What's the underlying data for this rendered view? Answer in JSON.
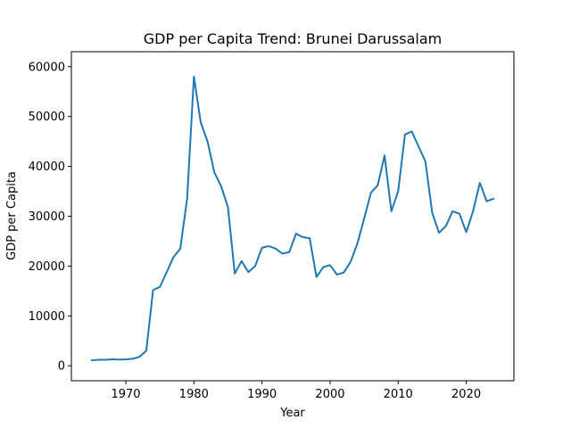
{
  "chart_data": {
    "type": "line",
    "title": "GDP per Capita Trend: Brunei Darussalam",
    "xlabel": "Year",
    "ylabel": "GDP per Capita",
    "xlim": [
      1962,
      2027
    ],
    "ylim": [
      -3000,
      63000
    ],
    "xticks": [
      1970,
      1980,
      1990,
      2000,
      2010,
      2020
    ],
    "yticks": [
      0,
      10000,
      20000,
      30000,
      40000,
      50000,
      60000
    ],
    "grid": false,
    "line_color": "#1f77b4",
    "series": [
      {
        "x": [
          1965,
          1966,
          1967,
          1968,
          1969,
          1970,
          1971,
          1972,
          1973,
          1974,
          1975,
          1976,
          1977,
          1978,
          1979,
          1980,
          1981,
          1982,
          1983,
          1984,
          1985,
          1986,
          1987,
          1988,
          1989,
          1990,
          1991,
          1992,
          1993,
          1994,
          1995,
          1996,
          1997,
          1998,
          1999,
          2000,
          2001,
          2002,
          2003,
          2004,
          2005,
          2006,
          2007,
          2008,
          2009,
          2010,
          2011,
          2012,
          2013,
          2014,
          2015,
          2016,
          2017,
          2018,
          2019,
          2020,
          2021,
          2022,
          2023,
          2024
        ],
        "values": [
          1100,
          1200,
          1200,
          1300,
          1250,
          1300,
          1400,
          1800,
          3000,
          15200,
          15800,
          18800,
          21800,
          23500,
          33500,
          58000,
          48800,
          45000,
          38800,
          36000,
          31800,
          18500,
          21000,
          18800,
          20000,
          23700,
          24000,
          23500,
          22500,
          22800,
          26500,
          25800,
          25600,
          17800,
          19800,
          20200,
          18300,
          18700,
          20800,
          24500,
          29500,
          34700,
          36200,
          42200,
          31000,
          35000,
          46400,
          47000,
          44000,
          41000,
          30700,
          26700,
          28000,
          31000,
          30500,
          26800,
          31000,
          36700,
          33000,
          33500
        ]
      }
    ]
  }
}
